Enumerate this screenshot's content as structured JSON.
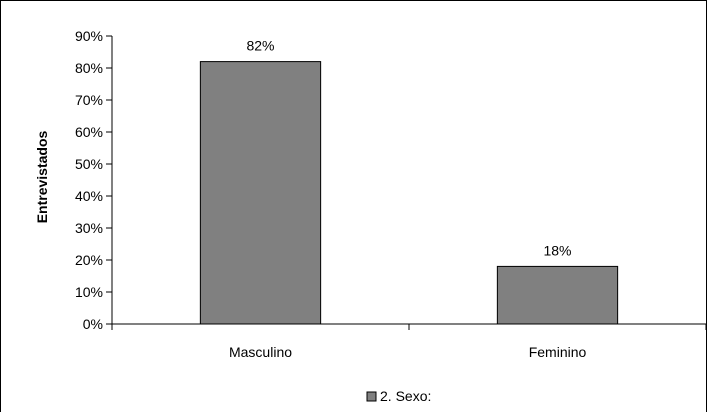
{
  "chart_data": {
    "type": "bar",
    "title": "",
    "xlabel": "",
    "ylabel": "Entrevistados",
    "categories": [
      "Masculino",
      "Feminino"
    ],
    "series": [
      {
        "name": "2. Sexo:",
        "values": [
          82,
          18
        ],
        "color": "#808080"
      }
    ],
    "data_labels": [
      "82%",
      "18%"
    ],
    "ylim": [
      0,
      90
    ],
    "yticks": [
      0,
      10,
      20,
      30,
      40,
      50,
      60,
      70,
      80,
      90
    ],
    "ytick_labels": [
      "0%",
      "10%",
      "20%",
      "30%",
      "40%",
      "50%",
      "60%",
      "70%",
      "80%",
      "90%"
    ],
    "grid": false,
    "legend": "bottom-center"
  }
}
